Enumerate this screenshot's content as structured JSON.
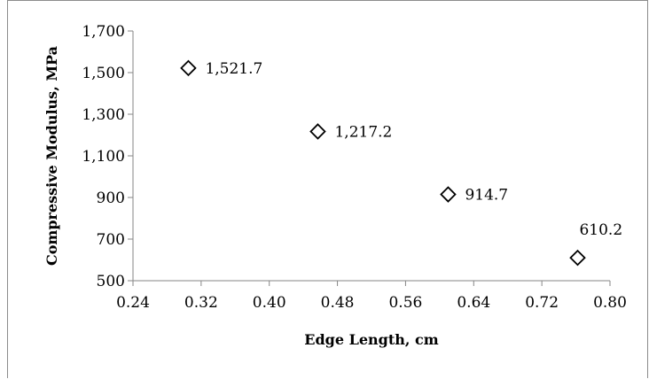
{
  "chart_data": {
    "type": "scatter",
    "title": "",
    "xlabel": "Edge Length, cm",
    "ylabel": "Compressive Modulus, MPa",
    "xlim": [
      0.24,
      0.8
    ],
    "ylim": [
      500,
      1700
    ],
    "x_ticks": [
      "0.24",
      "0.32",
      "0.40",
      "0.48",
      "0.56",
      "0.64",
      "0.72",
      "0.80"
    ],
    "y_ticks": [
      "500",
      "700",
      "900",
      "1,100",
      "1,300",
      "1,500",
      "1,700"
    ],
    "grid": false,
    "legend": "none",
    "marker": "diamond",
    "marker_color": "#000000",
    "points": [
      {
        "x": 0.305,
        "y": 1521.7,
        "label": "1,521.7"
      },
      {
        "x": 0.457,
        "y": 1217.2,
        "label": "1,217.2"
      },
      {
        "x": 0.61,
        "y": 914.7,
        "label": "914.7"
      },
      {
        "x": 0.762,
        "y": 610.2,
        "label": "610.2"
      }
    ]
  }
}
